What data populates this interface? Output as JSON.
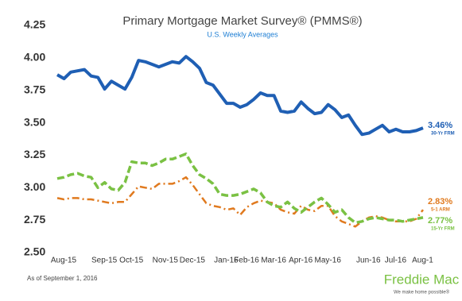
{
  "chart_data": {
    "type": "line",
    "title": "Primary Mortgage Market Survey® (PMMS®)",
    "subtitle": "U.S. Weekly Averages",
    "footnote": "As of September 1, 2016",
    "logo": {
      "name": "Freddie Mac",
      "tagline": "We make home possible®"
    },
    "grid": false,
    "ylim": [
      2.5,
      4.25
    ],
    "yticks": [
      {
        "value": 2.5,
        "label": "2.50"
      },
      2.75,
      {
        "value": 3,
        "label": "3.00"
      },
      3.25,
      {
        "value": 3.5,
        "label": "3.50"
      },
      3.75,
      {
        "value": 4,
        "label": "4.00"
      },
      4.25
    ],
    "categories": [
      "Aug-15",
      null,
      null,
      null,
      null,
      null,
      "Sep-15",
      null,
      null,
      null,
      "Oct-15",
      null,
      null,
      null,
      null,
      "Nov-15",
      null,
      null,
      null,
      "Dec-15",
      null,
      null,
      null,
      null,
      "Jan-16",
      null,
      null,
      "Feb-16",
      null,
      null,
      null,
      "Mar-16",
      null,
      null,
      null,
      "Apr-16",
      null,
      null,
      null,
      "May-16",
      null,
      null,
      null,
      null,
      null,
      "Jun-16",
      null,
      null,
      null,
      "Jul-16",
      null,
      null,
      null,
      "Aug-1",
      null
    ],
    "series": [
      {
        "name": "30-Yr FRM",
        "color": "#1f5fb4",
        "style": "solid",
        "values": [
          3.87,
          3.84,
          3.89,
          3.9,
          3.91,
          3.86,
          3.85,
          3.76,
          3.82,
          3.79,
          3.76,
          3.85,
          3.98,
          3.97,
          3.95,
          3.93,
          3.95,
          3.97,
          3.96,
          4.01,
          3.97,
          3.92,
          3.81,
          3.79,
          3.72,
          3.65,
          3.65,
          3.62,
          3.64,
          3.68,
          3.73,
          3.71,
          3.71,
          3.59,
          3.58,
          3.59,
          3.66,
          3.61,
          3.57,
          3.58,
          3.64,
          3.6,
          3.54,
          3.56,
          3.48,
          3.41,
          3.42,
          3.45,
          3.48,
          3.43,
          3.45,
          3.43,
          3.43,
          3.44,
          3.46
        ],
        "value_labels": [
          null,
          null,
          null,
          null,
          null,
          null,
          null,
          null,
          null,
          null,
          null,
          null,
          null,
          null,
          null,
          null,
          null,
          null,
          null,
          null,
          null,
          null,
          null,
          null,
          null,
          null,
          null,
          null,
          null,
          null,
          null,
          null,
          null,
          null,
          null,
          null,
          null,
          null,
          null,
          null,
          null,
          null,
          null,
          null,
          null,
          null,
          null,
          null,
          null,
          null,
          null,
          null,
          null,
          null,
          "3.46%"
        ]
      },
      {
        "name": "5-1 ARM",
        "color": "#e07a1f",
        "style": "dashdot",
        "values": [
          2.92,
          2.91,
          2.92,
          2.92,
          2.91,
          2.91,
          2.9,
          2.89,
          2.88,
          2.89,
          2.89,
          2.95,
          3.01,
          3.0,
          2.99,
          3.03,
          3.03,
          3.03,
          3.05,
          3.08,
          3.02,
          2.95,
          2.88,
          2.86,
          2.85,
          2.83,
          2.84,
          2.79,
          2.85,
          2.88,
          2.9,
          2.89,
          2.88,
          2.83,
          2.81,
          2.8,
          2.86,
          2.83,
          2.82,
          2.86,
          2.86,
          2.78,
          2.74,
          2.72,
          2.7,
          2.74,
          2.77,
          2.78,
          2.77,
          2.75,
          2.74,
          2.74,
          2.74,
          2.76,
          2.83
        ],
        "value_labels": [
          null,
          null,
          null,
          null,
          null,
          null,
          null,
          null,
          null,
          null,
          null,
          null,
          null,
          null,
          null,
          null,
          null,
          null,
          null,
          null,
          null,
          null,
          null,
          null,
          null,
          null,
          null,
          null,
          null,
          null,
          null,
          null,
          null,
          null,
          null,
          null,
          null,
          null,
          null,
          null,
          null,
          null,
          null,
          null,
          null,
          null,
          null,
          null,
          null,
          null,
          null,
          null,
          null,
          null,
          "2.83%"
        ]
      },
      {
        "name": "15-Yr FRM",
        "color": "#7ac143",
        "style": "dashed",
        "values": [
          3.07,
          3.08,
          3.1,
          3.11,
          3.09,
          3.08,
          3.0,
          3.04,
          2.99,
          2.98,
          3.04,
          3.2,
          3.19,
          3.19,
          3.17,
          3.19,
          3.22,
          3.22,
          3.24,
          3.26,
          3.17,
          3.1,
          3.07,
          3.03,
          2.95,
          2.94,
          2.94,
          2.95,
          2.97,
          2.99,
          2.96,
          2.89,
          2.86,
          2.85,
          2.89,
          2.84,
          2.81,
          2.85,
          2.89,
          2.92,
          2.87,
          2.81,
          2.83,
          2.77,
          2.73,
          2.74,
          2.76,
          2.77,
          2.76,
          2.75,
          2.75,
          2.74,
          2.75,
          2.76,
          2.77
        ],
        "value_labels": [
          null,
          null,
          null,
          null,
          null,
          null,
          null,
          null,
          null,
          null,
          null,
          null,
          null,
          null,
          null,
          null,
          null,
          null,
          null,
          null,
          null,
          null,
          null,
          null,
          null,
          null,
          null,
          null,
          null,
          null,
          null,
          null,
          null,
          null,
          null,
          null,
          null,
          null,
          null,
          null,
          null,
          null,
          null,
          null,
          null,
          null,
          null,
          null,
          null,
          null,
          null,
          null,
          null,
          null,
          "2.77%"
        ]
      }
    ]
  }
}
